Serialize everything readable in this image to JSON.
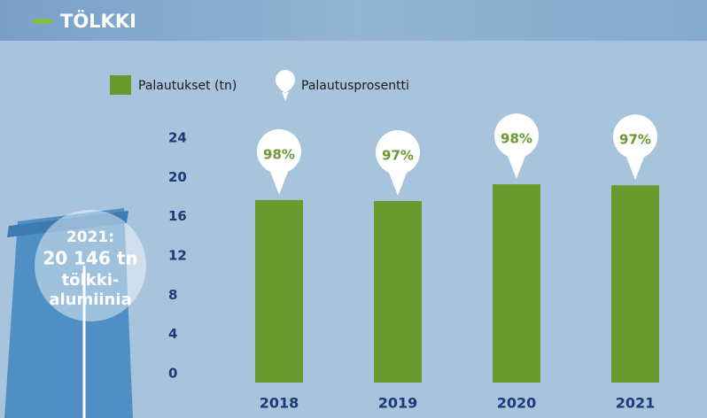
{
  "chart_data": {
    "type": "bar",
    "title": "TÖLKKI",
    "categories": [
      "2018",
      "2019",
      "2020",
      "2021"
    ],
    "series": [
      {
        "name": "Palautukset (tn)",
        "color": "#6a9a2e",
        "values": [
          18.6,
          18.5,
          20.2,
          20.1
        ]
      },
      {
        "name": "Palautusprosentti",
        "color": "#ffffff",
        "values": [
          98,
          97,
          98,
          97
        ],
        "value_labels": [
          "98%",
          "97%",
          "98%",
          "97%"
        ]
      }
    ],
    "ylim": [
      0,
      24
    ],
    "yticks": [
      0,
      4,
      8,
      12,
      16,
      20,
      24
    ],
    "grid": false,
    "annotation": [
      "2021:",
      "20 146 tn",
      "tölkki-",
      "alumiinia"
    ]
  }
}
